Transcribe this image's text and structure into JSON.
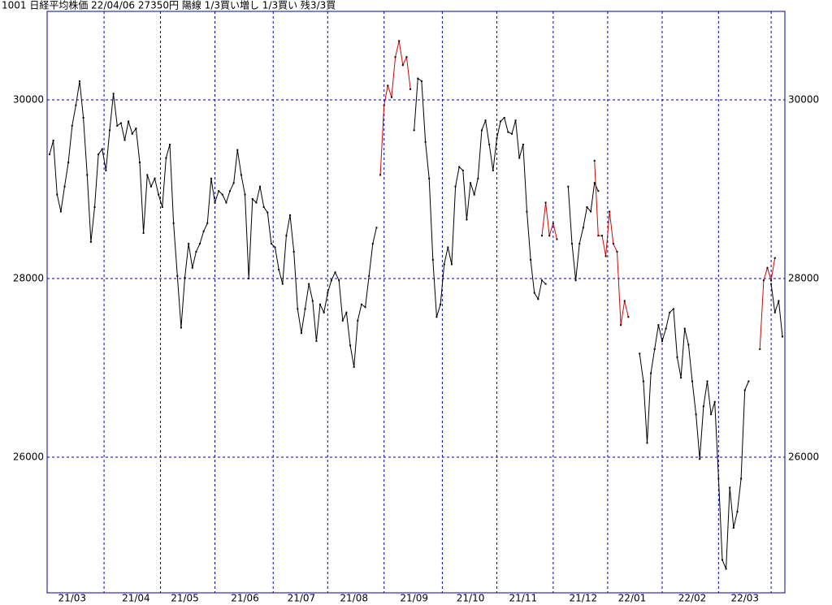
{
  "chart_data": {
    "type": "line",
    "title": "1001 日経平均株価 22/04/06 27350円 陽線 1/3買い増し 1/3買い 残3/3買",
    "ylim": [
      24482,
      30991
    ],
    "yticks": [
      26000,
      28000,
      30000
    ],
    "xlim": [
      0,
      195
    ],
    "xticks": [
      {
        "value": 6,
        "label": "21/03"
      },
      {
        "value": 23,
        "label": "21/04"
      },
      {
        "value": 36,
        "label": "21/05"
      },
      {
        "value": 52,
        "label": "21/06"
      },
      {
        "value": 67,
        "label": "21/07"
      },
      {
        "value": 81,
        "label": "21/08"
      },
      {
        "value": 97,
        "label": "21/09"
      },
      {
        "value": 112,
        "label": "21/10"
      },
      {
        "value": 126,
        "label": "21/11"
      },
      {
        "value": 142,
        "label": "21/12"
      },
      {
        "value": 155,
        "label": "22/01"
      },
      {
        "value": 171,
        "label": "22/02"
      },
      {
        "value": 185,
        "label": "22/03"
      }
    ],
    "grid": true,
    "marker_color": "#000000",
    "frame_color": "#0000aa",
    "series": [
      {
        "color": "#000000",
        "values": [
          29390,
          29545,
          28940,
          28750,
          29030,
          29300,
          29710,
          29940,
          30210,
          29800,
          29160,
          28410,
          28800,
          29390,
          29450,
          29210,
          29660,
          30070,
          29710,
          29740,
          29550,
          29760,
          29620,
          29680,
          29300,
          28510,
          29160,
          29030,
          29120,
          28940,
          28800,
          29350,
          29500,
          28620,
          28030,
          27450,
          28010,
          28390,
          28120,
          28300,
          28390,
          28530,
          28620,
          29120,
          28850,
          28980,
          28940,
          28850,
          28980,
          29070,
          29440,
          29160,
          28940,
          28000,
          28890,
          28850,
          29030,
          28800,
          28740,
          28390,
          28350,
          28100,
          27940,
          28480,
          28710,
          28300,
          27660,
          27390,
          27660,
          27940,
          27750,
          27300,
          27710,
          27620,
          27840,
          27980,
          28070,
          27980,
          27530,
          27620,
          27250,
          27010,
          27530,
          27710,
          27680,
          28030,
          28390,
          28570,
          null,
          null,
          null,
          null,
          null,
          null,
          null,
          null,
          null,
          29660,
          30240,
          30210,
          29530,
          29120,
          28210,
          27570,
          27710,
          28160,
          28350,
          28160,
          29030,
          29250,
          29210,
          28660,
          29070,
          28940,
          29120,
          29660,
          29770,
          29500,
          29210,
          29570,
          29760,
          29800,
          29640,
          29620,
          29770,
          29350,
          29500,
          28750,
          28210,
          27840,
          27770,
          27980,
          27940,
          null,
          null,
          null,
          null,
          null,
          29030,
          28390,
          27980,
          28390,
          28570,
          28800,
          28750,
          29070,
          28980,
          null,
          null,
          null,
          null,
          null,
          null,
          null,
          null,
          null,
          null,
          27160,
          26850,
          26160,
          26940,
          27210,
          27480,
          27300,
          27440,
          27620,
          27660,
          27120,
          26890,
          27440,
          27260,
          26850,
          26480,
          25980,
          26570,
          26850,
          26480,
          26620,
          25760,
          24850,
          24750,
          25660,
          25210,
          25390,
          25760,
          26750,
          26850,
          null,
          null,
          null,
          null,
          null,
          27940,
          27620,
          27750,
          27350
        ]
      },
      {
        "color": "#dd0000",
        "values": [
          null,
          null,
          null,
          null,
          null,
          null,
          null,
          null,
          null,
          null,
          null,
          null,
          null,
          null,
          null,
          null,
          null,
          null,
          null,
          null,
          null,
          null,
          null,
          null,
          null,
          null,
          null,
          null,
          null,
          null,
          null,
          null,
          null,
          null,
          null,
          null,
          null,
          null,
          null,
          null,
          null,
          null,
          null,
          null,
          null,
          null,
          null,
          null,
          null,
          null,
          null,
          null,
          null,
          null,
          null,
          null,
          null,
          null,
          null,
          null,
          null,
          null,
          null,
          null,
          null,
          null,
          null,
          null,
          null,
          null,
          null,
          null,
          null,
          null,
          null,
          null,
          null,
          null,
          null,
          null,
          null,
          null,
          null,
          null,
          null,
          null,
          null,
          null,
          29160,
          29940,
          30160,
          30030,
          30480,
          30660,
          30390,
          30480,
          30120,
          null,
          null,
          null,
          null,
          null,
          null,
          null,
          null,
          null,
          null,
          null,
          null,
          null,
          null,
          null,
          null,
          null,
          null,
          null,
          null,
          null,
          null,
          null,
          null,
          null,
          null,
          null,
          null,
          null,
          null,
          null,
          null,
          null,
          null,
          28480,
          28850,
          28480,
          28620,
          28440,
          null,
          null,
          null,
          null,
          null,
          null,
          null,
          null,
          null,
          29320,
          28480,
          28480,
          28250,
          28750,
          28390,
          28300,
          27480,
          27750,
          27570,
          null,
          null,
          null,
          null,
          null,
          null,
          null,
          null,
          null,
          null,
          null,
          null,
          null,
          null,
          null,
          null,
          null,
          null,
          null,
          null,
          null,
          null,
          null,
          null,
          null,
          null,
          null,
          null,
          null,
          null,
          null,
          null,
          null,
          null,
          27210,
          27980,
          28120,
          27980,
          28230,
          null,
          null,
          null,
          null
        ]
      }
    ]
  }
}
